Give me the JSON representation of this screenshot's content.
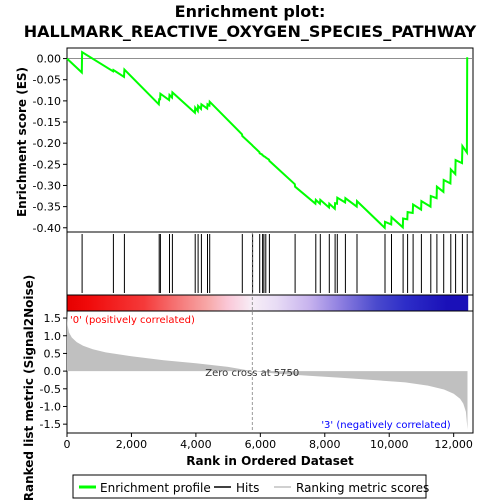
{
  "chart_data": {
    "type": "line",
    "title_line1": "Enrichment plot:",
    "title_line2": "HALLMARK_REACTIVE_OXYGEN_SPECIES_PATHWAY",
    "top_ylabel": "Enrichment score (ES)",
    "bottom_ylabel": "Ranked list metric (Signal2Noise)",
    "xlabel": "Rank in Ordered Dataset",
    "x_range": [
      0,
      12600
    ],
    "x_ticks": [
      0,
      2000,
      4000,
      6000,
      8000,
      10000,
      12000
    ],
    "x_tick_labels": [
      "0",
      "2,000",
      "4,000",
      "6,000",
      "8,000",
      "10,000",
      "12,000"
    ],
    "es_ylim": [
      -0.41,
      0.025
    ],
    "es_ticks": [
      0.0,
      -0.05,
      -0.1,
      -0.15,
      -0.2,
      -0.25,
      -0.3,
      -0.35,
      -0.4
    ],
    "es_tick_labels": [
      "0.00",
      "-0.05",
      "-0.10",
      "-0.15",
      "-0.20",
      "-0.25",
      "-0.30",
      "-0.35",
      "-0.40"
    ],
    "metric_ylim": [
      -1.75,
      1.7
    ],
    "metric_ticks": [
      1.5,
      1.0,
      0.5,
      0.0,
      -0.5,
      -1.0,
      -1.5
    ],
    "metric_tick_labels": [
      "1.5",
      "1.0",
      "0.5",
      "0.0",
      "-0.5",
      "-1.0",
      "-1.5"
    ],
    "hits": [
      470,
      1440,
      1780,
      2860,
      2900,
      3180,
      3270,
      3980,
      4070,
      4170,
      4360,
      4430,
      5440,
      5760,
      5980,
      6070,
      6110,
      6170,
      6280,
      7080,
      7720,
      7860,
      8140,
      8320,
      8390,
      8640,
      9000,
      9870,
      10070,
      10430,
      10570,
      10740,
      11000,
      11290,
      11480,
      11690,
      11910,
      12060,
      12270,
      12420
    ],
    "es_profile": [
      [
        0,
        0.0
      ],
      [
        460,
        -0.033
      ],
      [
        470,
        0.015
      ],
      [
        1430,
        -0.03
      ],
      [
        1440,
        -0.027
      ],
      [
        1770,
        -0.043
      ],
      [
        1780,
        -0.026
      ],
      [
        2850,
        -0.108
      ],
      [
        2860,
        -0.096
      ],
      [
        2890,
        -0.096
      ],
      [
        2900,
        -0.083
      ],
      [
        3170,
        -0.098
      ],
      [
        3180,
        -0.086
      ],
      [
        3260,
        -0.092
      ],
      [
        3270,
        -0.08
      ],
      [
        3970,
        -0.128
      ],
      [
        3980,
        -0.116
      ],
      [
        4060,
        -0.124
      ],
      [
        4070,
        -0.112
      ],
      [
        4160,
        -0.119
      ],
      [
        4170,
        -0.108
      ],
      [
        4350,
        -0.118
      ],
      [
        4360,
        -0.108
      ],
      [
        4420,
        -0.111
      ],
      [
        4430,
        -0.102
      ],
      [
        5430,
        -0.179
      ],
      [
        5440,
        -0.183
      ],
      [
        5750,
        -0.205
      ],
      [
        5760,
        -0.206
      ],
      [
        5970,
        -0.221
      ],
      [
        5980,
        -0.224
      ],
      [
        6060,
        -0.227
      ],
      [
        6070,
        -0.229
      ],
      [
        6100,
        -0.23
      ],
      [
        6110,
        -0.231
      ],
      [
        6160,
        -0.233
      ],
      [
        6170,
        -0.234
      ],
      [
        6270,
        -0.239
      ],
      [
        6280,
        -0.242
      ],
      [
        7070,
        -0.297
      ],
      [
        7080,
        -0.303
      ],
      [
        7710,
        -0.343
      ],
      [
        7720,
        -0.334
      ],
      [
        7850,
        -0.343
      ],
      [
        7860,
        -0.334
      ],
      [
        8130,
        -0.352
      ],
      [
        8140,
        -0.343
      ],
      [
        8310,
        -0.355
      ],
      [
        8320,
        -0.342
      ],
      [
        8380,
        -0.343
      ],
      [
        8390,
        -0.329
      ],
      [
        8630,
        -0.34
      ],
      [
        8640,
        -0.33
      ],
      [
        8990,
        -0.35
      ],
      [
        9000,
        -0.337
      ],
      [
        9860,
        -0.4
      ],
      [
        9870,
        -0.386
      ],
      [
        10060,
        -0.392
      ],
      [
        10070,
        -0.375
      ],
      [
        10420,
        -0.399
      ],
      [
        10430,
        -0.378
      ],
      [
        10560,
        -0.38
      ],
      [
        10570,
        -0.363
      ],
      [
        10730,
        -0.365
      ],
      [
        10740,
        -0.345
      ],
      [
        10990,
        -0.357
      ],
      [
        11000,
        -0.337
      ],
      [
        11280,
        -0.35
      ],
      [
        11290,
        -0.325
      ],
      [
        11470,
        -0.33
      ],
      [
        11480,
        -0.303
      ],
      [
        11680,
        -0.315
      ],
      [
        11690,
        -0.287
      ],
      [
        11900,
        -0.295
      ],
      [
        11910,
        -0.262
      ],
      [
        12050,
        -0.273
      ],
      [
        12060,
        -0.24
      ],
      [
        12260,
        -0.247
      ],
      [
        12270,
        -0.207
      ],
      [
        12410,
        -0.222
      ],
      [
        12420,
        0.003
      ]
    ],
    "metric_profile": [
      [
        0,
        1.68
      ],
      [
        20,
        1.3
      ],
      [
        60,
        1.1
      ],
      [
        150,
        0.95
      ],
      [
        300,
        0.82
      ],
      [
        500,
        0.72
      ],
      [
        800,
        0.62
      ],
      [
        1200,
        0.53
      ],
      [
        2000,
        0.42
      ],
      [
        3000,
        0.31
      ],
      [
        4000,
        0.22
      ],
      [
        5000,
        0.12
      ],
      [
        5750,
        0.0
      ],
      [
        6500,
        -0.07
      ],
      [
        7500,
        -0.13
      ],
      [
        8500,
        -0.19
      ],
      [
        9500,
        -0.25
      ],
      [
        10500,
        -0.32
      ],
      [
        11200,
        -0.41
      ],
      [
        11700,
        -0.52
      ],
      [
        12000,
        -0.64
      ],
      [
        12200,
        -0.78
      ],
      [
        12300,
        -0.92
      ],
      [
        12380,
        -1.15
      ],
      [
        12430,
        -1.65
      ]
    ],
    "heatmap_stops": [
      [
        0,
        "#e60000"
      ],
      [
        650,
        "#f00a0a"
      ],
      [
        2400,
        "#f53a3a"
      ],
      [
        3300,
        "#f56f6f"
      ],
      [
        4400,
        "#f7aaaa"
      ],
      [
        5000,
        "#fac8d8"
      ],
      [
        5750,
        "#f7eef7"
      ],
      [
        6500,
        "#e8dcf5"
      ],
      [
        7500,
        "#c8b4ee"
      ],
      [
        8500,
        "#8d7ee0"
      ],
      [
        9600,
        "#4a4acd"
      ],
      [
        10500,
        "#2d2dc8"
      ],
      [
        11800,
        "#1a10b8"
      ],
      [
        12450,
        "#1a10b8"
      ]
    ],
    "pos_label": "'0' (positively correlated)",
    "neg_label": "'3' (negatively correlated)",
    "zero_cross_label": "Zero cross at 5750",
    "zero_cross_rank": 5750,
    "legend": {
      "profile_label": "Enrichment profile",
      "hits_label": "Hits",
      "metric_label": "Ranking metric scores"
    },
    "colors": {
      "profile": "#00ff00",
      "hits": "#000000",
      "metric_fill": "#c0c0c0",
      "pos_text": "#ff0000",
      "neg_text": "#0000ff",
      "zero_line": "#808080"
    }
  }
}
